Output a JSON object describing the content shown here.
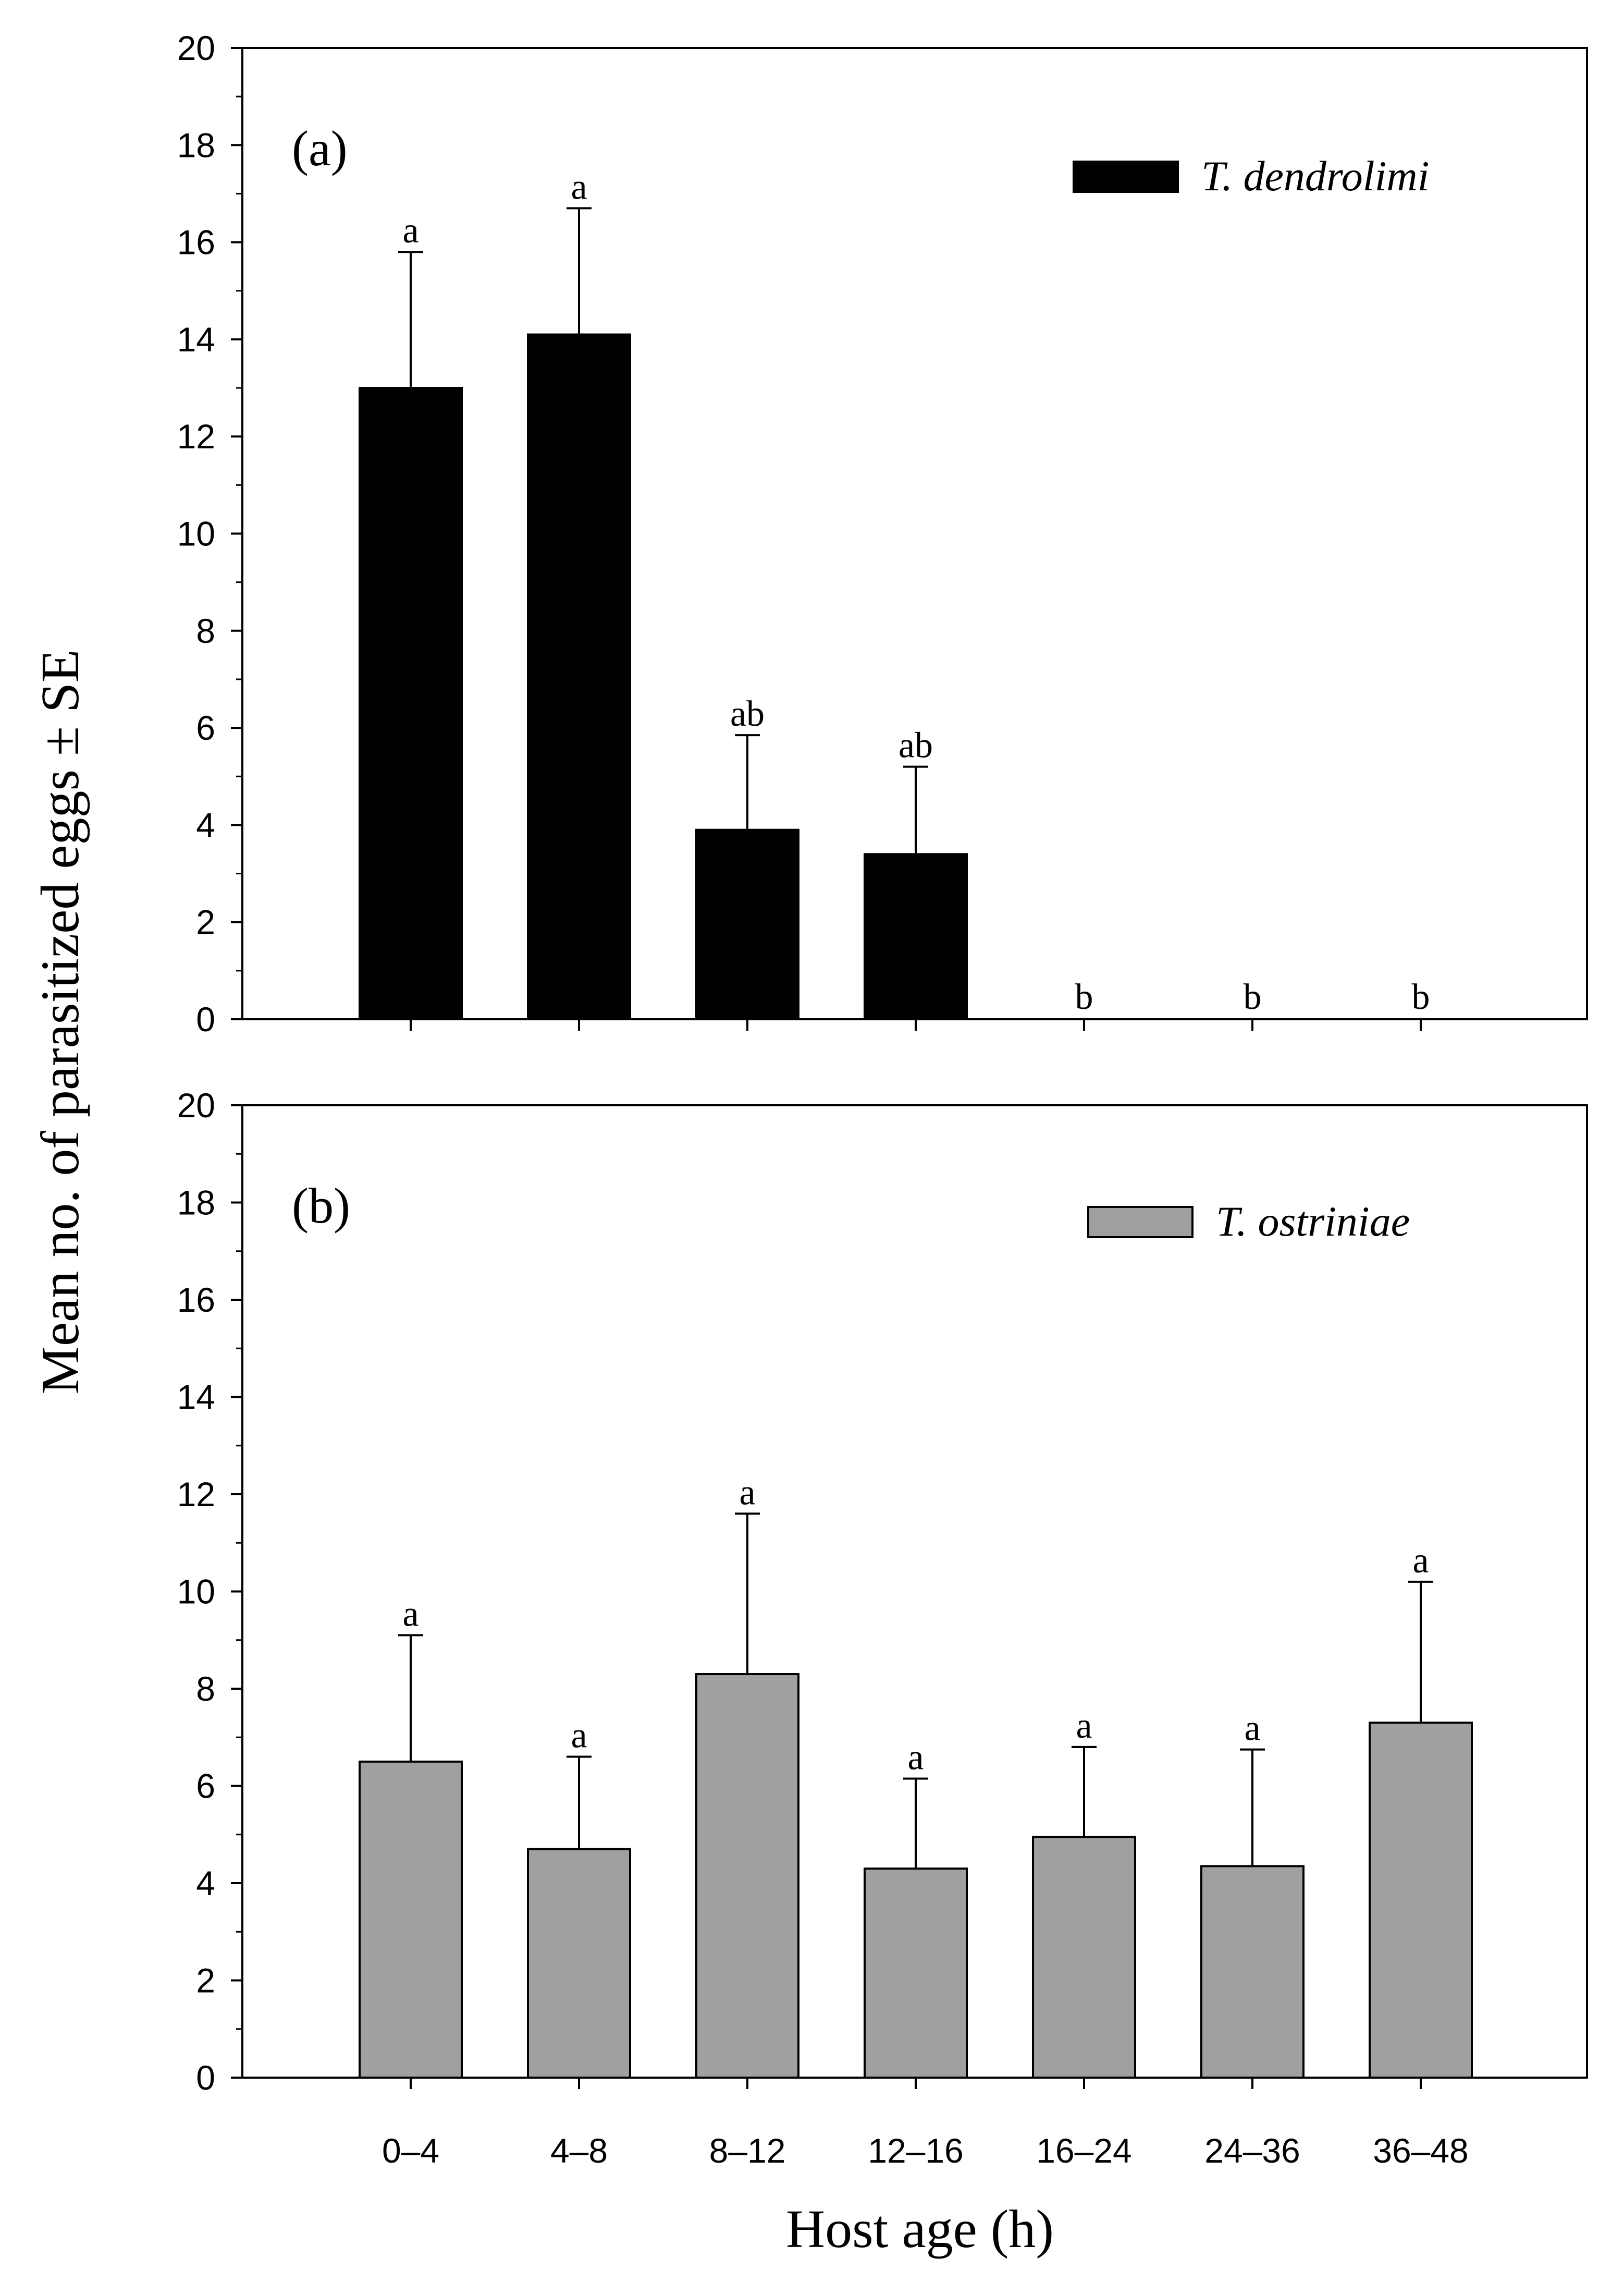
{
  "figure": {
    "ylabel": "Mean no. of parasitized eggs ± SE",
    "xlabel": "Host age (h)"
  },
  "chart_data": [
    {
      "type": "bar",
      "panel_label": "(a)",
      "categories": [
        "0–4",
        "4–8",
        "8–12",
        "12–16",
        "16–24",
        "24–36",
        "36–48"
      ],
      "series": [
        {
          "name": "T. dendrolimi",
          "values": [
            13.0,
            14.1,
            3.9,
            3.4,
            0,
            0,
            0
          ],
          "se": [
            2.8,
            2.6,
            1.95,
            1.8,
            0,
            0,
            0
          ],
          "significance": [
            "a",
            "a",
            "ab",
            "ab",
            "b",
            "b",
            "b"
          ],
          "color": "#000000"
        }
      ],
      "ylim": [
        0,
        20
      ],
      "yticks": [
        0,
        2,
        4,
        6,
        8,
        10,
        12,
        14,
        16,
        18,
        20
      ],
      "show_x_tick_labels": false,
      "legend_position": "top-right"
    },
    {
      "type": "bar",
      "panel_label": "(b)",
      "categories": [
        "0–4",
        "4–8",
        "8–12",
        "12–16",
        "16–24",
        "24–36",
        "36–48"
      ],
      "series": [
        {
          "name": "T. ostriniae",
          "values": [
            6.5,
            4.7,
            8.3,
            4.3,
            4.95,
            4.35,
            7.3
          ],
          "se": [
            2.6,
            1.9,
            3.3,
            1.85,
            1.85,
            2.4,
            2.9
          ],
          "significance": [
            "a",
            "a",
            "a",
            "a",
            "a",
            "a",
            "a"
          ],
          "color": "#a0a0a0"
        }
      ],
      "ylim": [
        0,
        20
      ],
      "yticks": [
        0,
        2,
        4,
        6,
        8,
        10,
        12,
        14,
        16,
        18,
        20
      ],
      "show_x_tick_labels": true,
      "legend_position": "top-right"
    }
  ]
}
